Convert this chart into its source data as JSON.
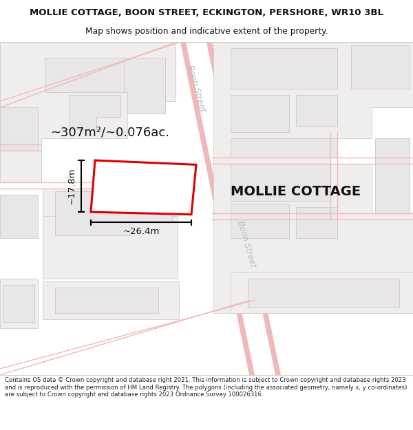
{
  "title_line1": "MOLLIE COTTAGE, BOON STREET, ECKINGTON, PERSHORE, WR10 3BL",
  "title_line2": "Map shows position and indicative extent of the property.",
  "footer_text": "Contains OS data © Crown copyright and database right 2021. This information is subject to Crown copyright and database rights 2023 and is reproduced with the permission of HM Land Registry. The polygons (including the associated geometry, namely x, y co-ordinates) are subject to Crown copyright and database rights 2023 Ordnance Survey 100026316.",
  "bg_color": "#f5f0f0",
  "road_fill": "#ffffff",
  "road_edge_color": "#f0b8b8",
  "building_fill": "#e8e6e6",
  "building_edge": "#d0cccc",
  "land_fill": "#f0eeed",
  "property_color": "#dd0000",
  "area_text": "~307m²/~0.076ac.",
  "dim_width": "~26.4m",
  "dim_height": "~17.8m",
  "property_label": "MOLLIE COTTAGE",
  "street_label1": "Boon Street",
  "street_label2": "Boon Street"
}
